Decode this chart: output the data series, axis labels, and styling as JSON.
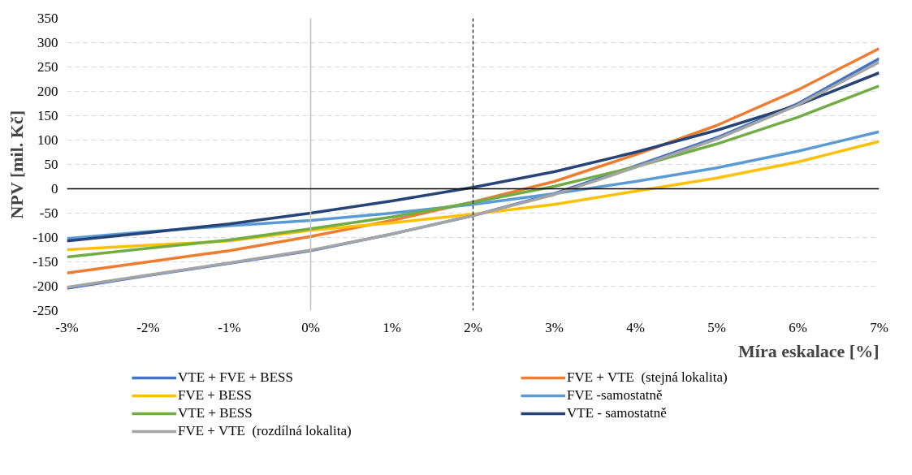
{
  "chart_data": {
    "type": "line",
    "xlabel": "Míra eskalace [%]",
    "ylabel": "NPV [mil. Kč]",
    "x": [
      -3,
      -2,
      -1,
      0,
      1,
      2,
      3,
      4,
      5,
      6,
      7
    ],
    "xlim": [
      -3,
      7
    ],
    "ylim": [
      -250,
      350
    ],
    "xticks": [
      {
        "value": -3,
        "label": "-3%"
      },
      {
        "value": -2,
        "label": "-2%"
      },
      {
        "value": -1,
        "label": "-1%"
      },
      {
        "value": 0,
        "label": "0%"
      },
      {
        "value": 1,
        "label": "1%"
      },
      {
        "value": 2,
        "label": "2%"
      },
      {
        "value": 3,
        "label": "3%"
      },
      {
        "value": 4,
        "label": "4%"
      },
      {
        "value": 5,
        "label": "5%"
      },
      {
        "value": 6,
        "label": "6%"
      },
      {
        "value": 7,
        "label": "7%"
      }
    ],
    "yticks": [
      -250,
      -200,
      -150,
      -100,
      -50,
      0,
      50,
      100,
      150,
      200,
      250,
      300,
      350
    ],
    "grid": "y",
    "legend": "bottom",
    "marker": "none",
    "line_style": "solid",
    "ref_lines": [
      {
        "axis": "x",
        "value": 2,
        "color": "#000000",
        "line_style": "dashed"
      }
    ],
    "series": [
      {
        "name": "VTE + FVE + BESS",
        "color": "#4472c4",
        "values": [
          -204,
          -178,
          -153,
          -127,
          -93,
          -55,
          -10,
          47,
          105,
          175,
          267
        ]
      },
      {
        "name": "FVE + VTE  (stejná lokalita)",
        "color": "#ed7d31",
        "values": [
          -173,
          -150,
          -127,
          -98,
          -65,
          -27,
          15,
          70,
          130,
          203,
          288
        ]
      },
      {
        "name": "FVE + BESS",
        "color": "#ffc000",
        "values": [
          -125,
          -116,
          -107,
          -85,
          -70,
          -52,
          -32,
          -5,
          22,
          55,
          97
        ]
      },
      {
        "name": "FVE -samostatně",
        "color": "#5b9bd5",
        "values": [
          -102,
          -88,
          -76,
          -65,
          -50,
          -32,
          -10,
          15,
          43,
          77,
          117
        ]
      },
      {
        "name": "VTE + BESS",
        "color": "#70ad47",
        "values": [
          -140,
          -122,
          -105,
          -82,
          -58,
          -28,
          5,
          45,
          92,
          147,
          211
        ]
      },
      {
        "name": "VTE - samostatně",
        "color": "#264478",
        "values": [
          -107,
          -90,
          -72,
          -50,
          -25,
          3,
          35,
          75,
          120,
          172,
          238
        ]
      },
      {
        "name": "FVE + VTE  (rozdílná lokalita)",
        "color": "#a5a5a5",
        "values": [
          -202,
          -177,
          -152,
          -126,
          -93,
          -55,
          -12,
          44,
          102,
          172,
          260
        ]
      }
    ]
  }
}
